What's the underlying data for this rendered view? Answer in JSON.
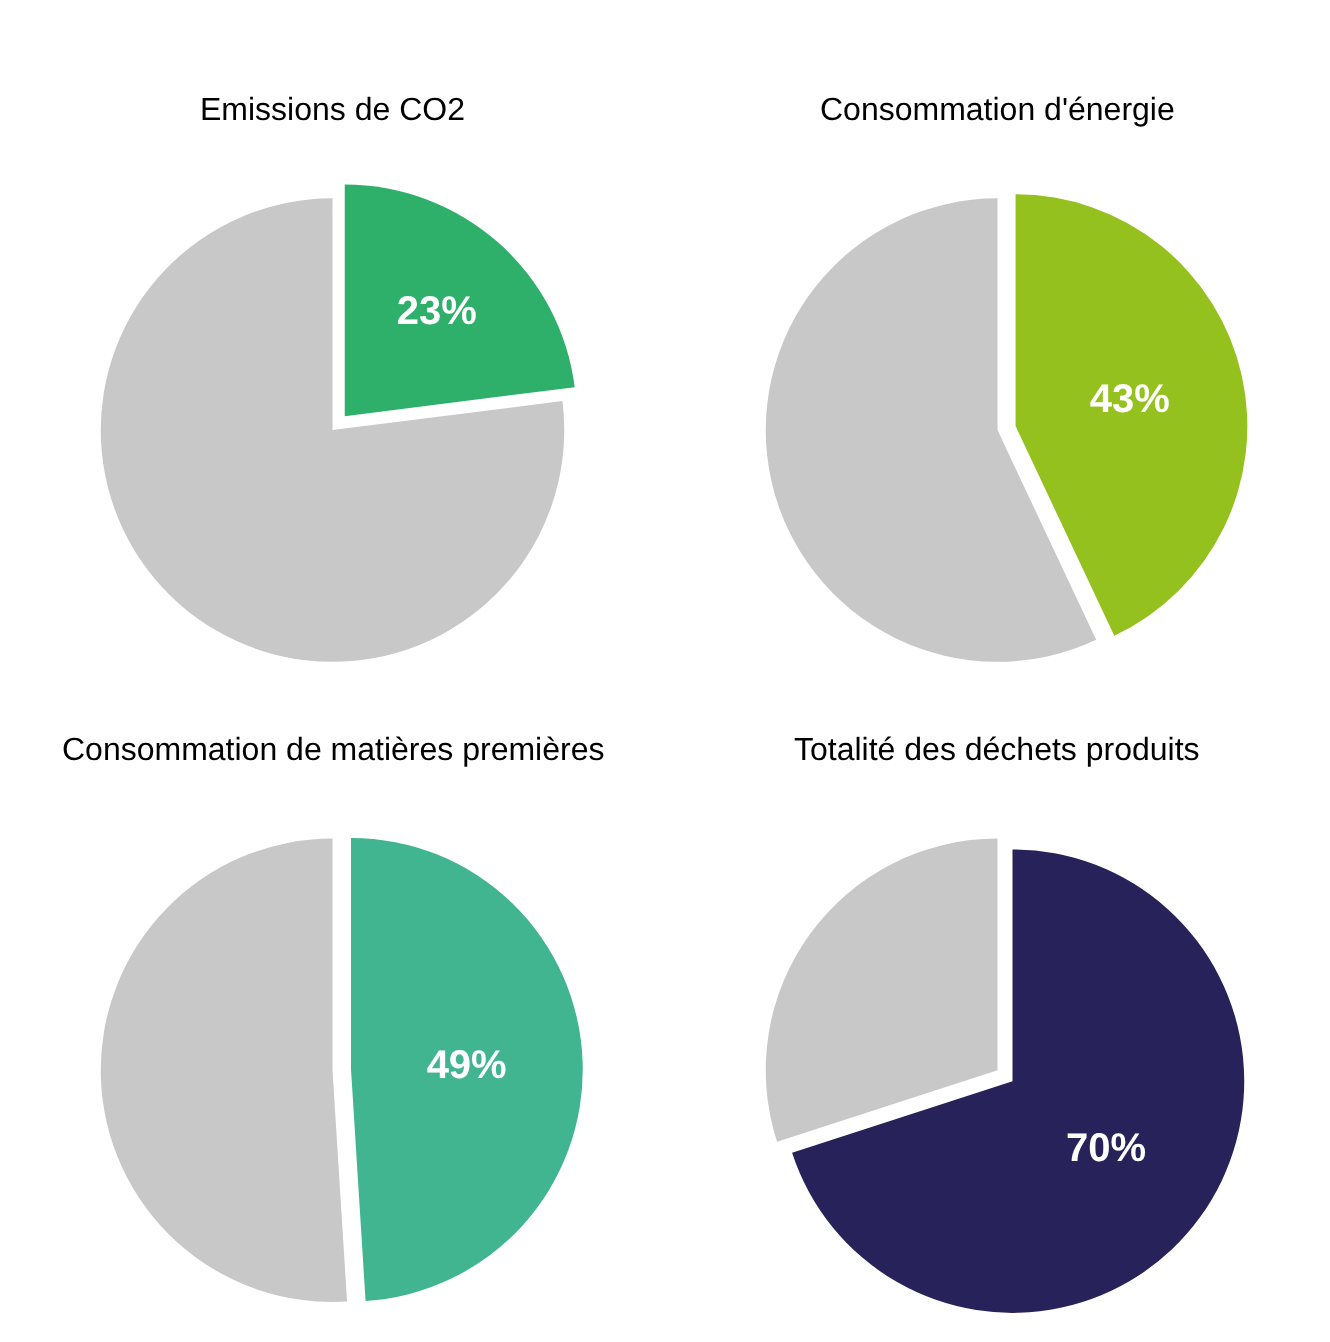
{
  "chart_data": [
    {
      "type": "pie",
      "title": "Emissions de CO2",
      "categories": [
        null,
        null
      ],
      "values": [
        23,
        77
      ],
      "colors": [
        "#2eaf6a",
        "#c8c8c8"
      ],
      "value_labels": [
        "23%",
        null
      ],
      "legend": false
    },
    {
      "type": "pie",
      "title": "Consommation d'énergie",
      "categories": [
        null,
        null
      ],
      "values": [
        43,
        57
      ],
      "colors": [
        "#95c11f",
        "#c8c8c8"
      ],
      "value_labels": [
        "43%",
        null
      ],
      "legend": false
    },
    {
      "type": "pie",
      "title": "Consommation de matières premières",
      "categories": [
        null,
        null
      ],
      "values": [
        49,
        51
      ],
      "colors": [
        "#41b590",
        "#c8c8c8"
      ],
      "value_labels": [
        "49%",
        null
      ],
      "legend": false
    },
    {
      "type": "pie",
      "title": "Totalité des déchets produits",
      "categories": [
        null,
        null
      ],
      "values": [
        70,
        30
      ],
      "colors": [
        "#27235a",
        "#c8c8c8"
      ],
      "value_labels": [
        "70%",
        null
      ],
      "legend": false
    }
  ]
}
